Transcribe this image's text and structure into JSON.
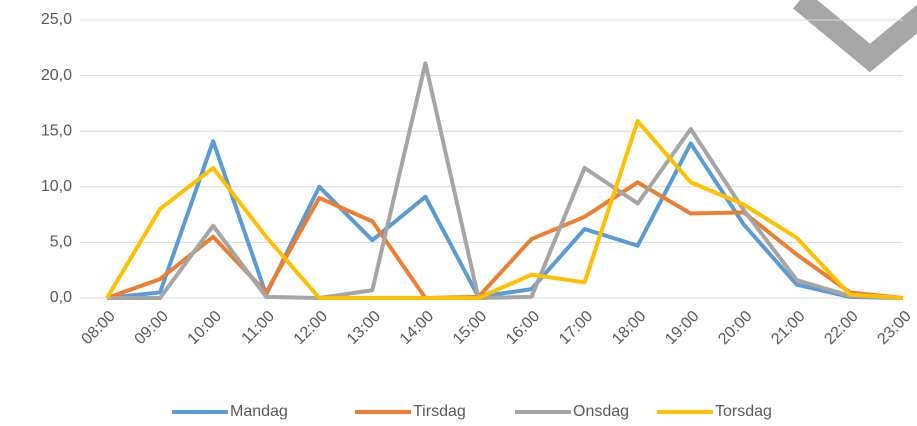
{
  "chart_data": {
    "type": "line",
    "categories": [
      "08:00",
      "09:00",
      "10:00",
      "11:00",
      "12:00",
      "13:00",
      "14:00",
      "15:00",
      "16:00",
      "17:00",
      "18:00",
      "19:00",
      "20:00",
      "21:00",
      "22:00",
      "23:00"
    ],
    "series": [
      {
        "name": "Mandag",
        "color": "#5b9bd5",
        "values": [
          0,
          0.5,
          14.1,
          0.3,
          10.0,
          5.2,
          9.1,
          0.1,
          0.8,
          6.2,
          4.7,
          13.9,
          6.6,
          1.2,
          0.1,
          0
        ]
      },
      {
        "name": "Tirsdag",
        "color": "#ed7d31",
        "values": [
          0,
          1.7,
          5.5,
          0.5,
          9.0,
          6.9,
          0,
          0.1,
          5.3,
          7.3,
          10.4,
          7.6,
          7.7,
          3.9,
          0.5,
          0
        ]
      },
      {
        "name": "Onsdag",
        "color": "#a5a5a5",
        "values": [
          0,
          0,
          6.5,
          0.1,
          0,
          0.7,
          21.1,
          0,
          0.1,
          11.7,
          8.5,
          15.2,
          7.9,
          1.6,
          0.2,
          0
        ]
      },
      {
        "name": "Torsdag",
        "color": "#ffc000",
        "values": [
          0,
          8.0,
          11.7,
          5.5,
          0,
          0,
          0,
          0,
          2.1,
          1.4,
          15.9,
          10.4,
          8.4,
          5.4,
          0.3,
          0
        ]
      }
    ],
    "ylim": [
      0,
      25
    ],
    "yticks": [
      {
        "value": 0,
        "label": "0,0"
      },
      {
        "value": 5,
        "label": "5,0"
      },
      {
        "value": 10,
        "label": "10,0"
      },
      {
        "value": 15,
        "label": "15,0"
      },
      {
        "value": 20,
        "label": "20,0"
      },
      {
        "value": 25,
        "label": "25,0"
      }
    ],
    "grid": true,
    "legend": "bottom"
  }
}
